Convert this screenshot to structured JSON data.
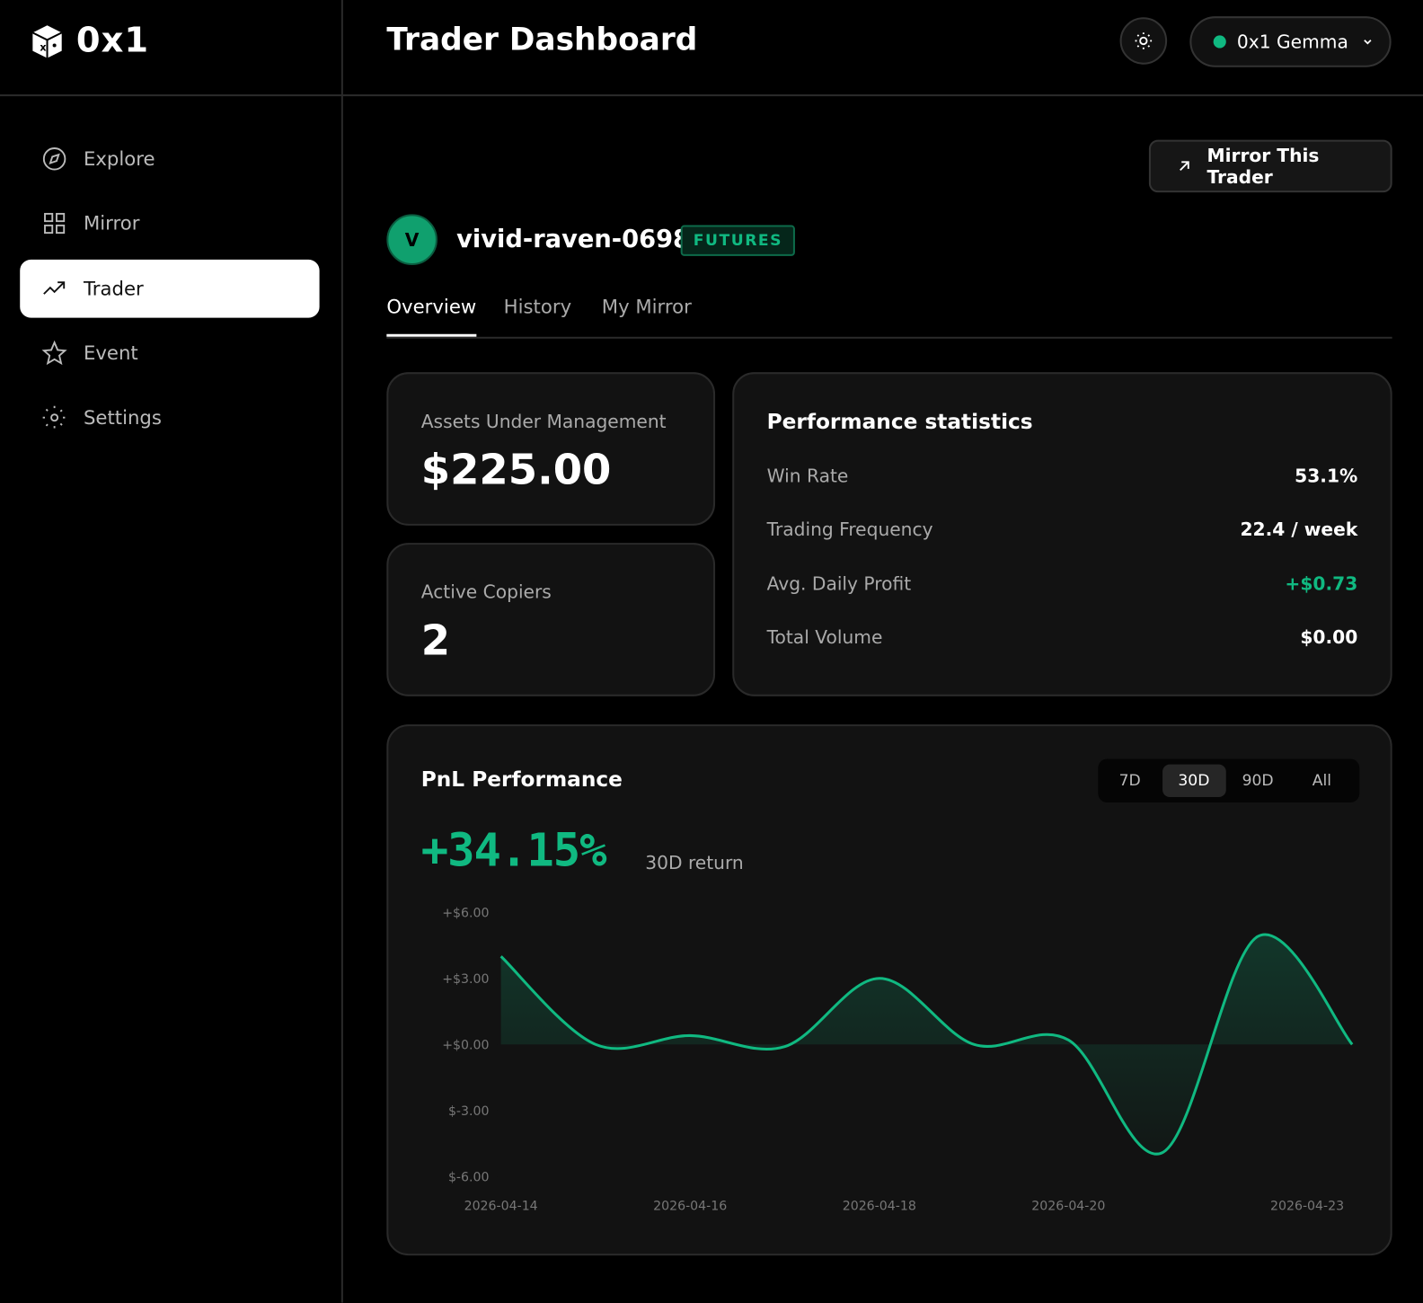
{
  "sidebar": {
    "logo": "0x1",
    "nav": [
      "Explore",
      "Mirror",
      "Trader",
      "Event",
      "Settings"
    ],
    "active_nav": 2
  },
  "header": {
    "title": "Trader Dashboard",
    "account": "0x1 Gemma"
  },
  "trader": {
    "avatar": "V",
    "name": "vivid-raven-0698",
    "badge": "FUTURES",
    "action": "Mirror This Trader"
  },
  "tabs": {
    "items": [
      "Overview",
      "History",
      "My Mirror"
    ],
    "active": 0
  },
  "aum": {
    "label": "Assets Under Management",
    "value": "$225.00"
  },
  "copiers": {
    "label": "Active Copiers",
    "value": 2
  },
  "stats": {
    "title": "Performance statistics",
    "rows": [
      {
        "label": "Win Rate",
        "value": "53.1%"
      },
      {
        "label": "Trading Frequency",
        "value": "22.4 / week"
      },
      {
        "label": "Avg. Daily Profit",
        "value": "+$0.73",
        "color": "#10b981"
      },
      {
        "label": "Total Volume",
        "value": "$0.00"
      }
    ]
  },
  "chart_data": {
    "type": "line",
    "title": "PnL Performance",
    "ranges": [
      "7D",
      "30D",
      "90D",
      "All"
    ],
    "active_range": 1,
    "return_value": "+34.15%",
    "return_label": "30D return",
    "categories": [
      "2026-04-14",
      null,
      "2026-04-16",
      null,
      "2026-04-18",
      null,
      "2026-04-20",
      null,
      null,
      "2026-04-23"
    ],
    "values": [
      4.0,
      0.0,
      0.4,
      -0.1,
      3.0,
      0.0,
      0.2,
      -4.9,
      4.9,
      0.0
    ],
    "color": "#10b981",
    "ylim": [
      -6,
      6
    ],
    "yticks": [
      {
        "value": 6,
        "label": "+$6.00"
      },
      {
        "value": 3,
        "label": "+$3.00"
      },
      {
        "value": 0,
        "label": "+$0.00"
      },
      {
        "value": -3,
        "label": "$-3.00"
      },
      {
        "value": -6,
        "label": "$-6.00"
      }
    ]
  }
}
